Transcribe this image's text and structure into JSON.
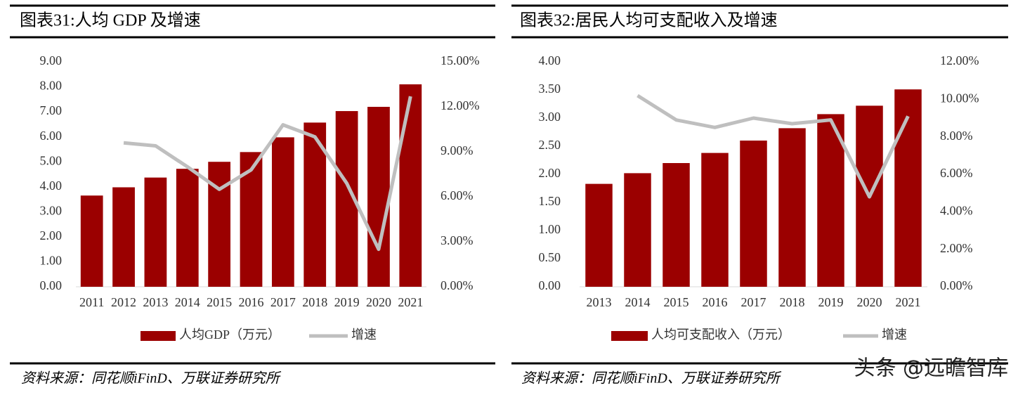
{
  "chart_data": [
    {
      "type": "bar",
      "title": "图表31:人均 GDP 及增速",
      "categories": [
        "2011",
        "2012",
        "2013",
        "2014",
        "2015",
        "2016",
        "2017",
        "2018",
        "2019",
        "2020",
        "2021"
      ],
      "series": [
        {
          "name": "人均GDP（万元）",
          "type": "bar",
          "color": "#9b0000",
          "values": [
            3.65,
            3.98,
            4.37,
            4.72,
            5.0,
            5.39,
            5.98,
            6.57,
            7.03,
            7.2,
            8.1
          ]
        },
        {
          "name": "增速",
          "type": "line",
          "axis": "y2",
          "color": "#bfbfbf",
          "values": [
            null,
            9.6,
            9.4,
            8.0,
            6.5,
            7.8,
            10.8,
            10.0,
            6.9,
            2.5,
            12.7
          ]
        }
      ],
      "ylim": [
        0,
        9
      ],
      "yticks": [
        {
          "value": 0,
          "label": "0.00"
        },
        {
          "value": 1,
          "label": "1.00"
        },
        {
          "value": 2,
          "label": "2.00"
        },
        {
          "value": 3,
          "label": "3.00"
        },
        {
          "value": 4,
          "label": "4.00"
        },
        {
          "value": 5,
          "label": "5.00"
        },
        {
          "value": 6,
          "label": "6.00"
        },
        {
          "value": 7,
          "label": "7.00"
        },
        {
          "value": 8,
          "label": "8.00"
        },
        {
          "value": 9,
          "label": "9.00"
        }
      ],
      "y2lim": [
        0,
        15
      ],
      "y2ticks": [
        {
          "value": 0,
          "label": "0.00%"
        },
        {
          "value": 3,
          "label": "3.00%"
        },
        {
          "value": 6,
          "label": "6.00%"
        },
        {
          "value": 9,
          "label": "9.00%"
        },
        {
          "value": 12,
          "label": "12.00%"
        },
        {
          "value": 15,
          "label": "15.00%"
        }
      ],
      "source": "资料来源：同花顺iFinD、万联证券研究所"
    },
    {
      "type": "bar",
      "title": "图表32:居民人均可支配收入及增速",
      "categories": [
        "2013",
        "2014",
        "2015",
        "2016",
        "2017",
        "2018",
        "2019",
        "2020",
        "2021"
      ],
      "series": [
        {
          "name": "人均可支配收入（万元）",
          "type": "bar",
          "color": "#9b0000",
          "values": [
            1.83,
            2.02,
            2.2,
            2.38,
            2.6,
            2.82,
            3.07,
            3.22,
            3.51
          ]
        },
        {
          "name": "增速",
          "type": "line",
          "axis": "y2",
          "color": "#bfbfbf",
          "values": [
            null,
            10.2,
            8.9,
            8.5,
            9.0,
            8.7,
            8.9,
            4.8,
            9.1
          ]
        }
      ],
      "ylim": [
        0,
        4
      ],
      "yticks": [
        {
          "value": 0,
          "label": "0.00"
        },
        {
          "value": 0.5,
          "label": "0.50"
        },
        {
          "value": 1,
          "label": "1.00"
        },
        {
          "value": 1.5,
          "label": "1.50"
        },
        {
          "value": 2,
          "label": "2.00"
        },
        {
          "value": 2.5,
          "label": "2.50"
        },
        {
          "value": 3,
          "label": "3.00"
        },
        {
          "value": 3.5,
          "label": "3.50"
        },
        {
          "value": 4,
          "label": "4.00"
        }
      ],
      "y2lim": [
        0,
        12
      ],
      "y2ticks": [
        {
          "value": 0,
          "label": "0.00%"
        },
        {
          "value": 2,
          "label": "2.00%"
        },
        {
          "value": 4,
          "label": "4.00%"
        },
        {
          "value": 6,
          "label": "6.00%"
        },
        {
          "value": 8,
          "label": "8.00%"
        },
        {
          "value": 10,
          "label": "10.00%"
        },
        {
          "value": 12,
          "label": "12.00%"
        }
      ],
      "source": "资料来源：同花顺iFinD、万联证券研究所"
    }
  ],
  "watermark": "头条 @远瞻智库"
}
